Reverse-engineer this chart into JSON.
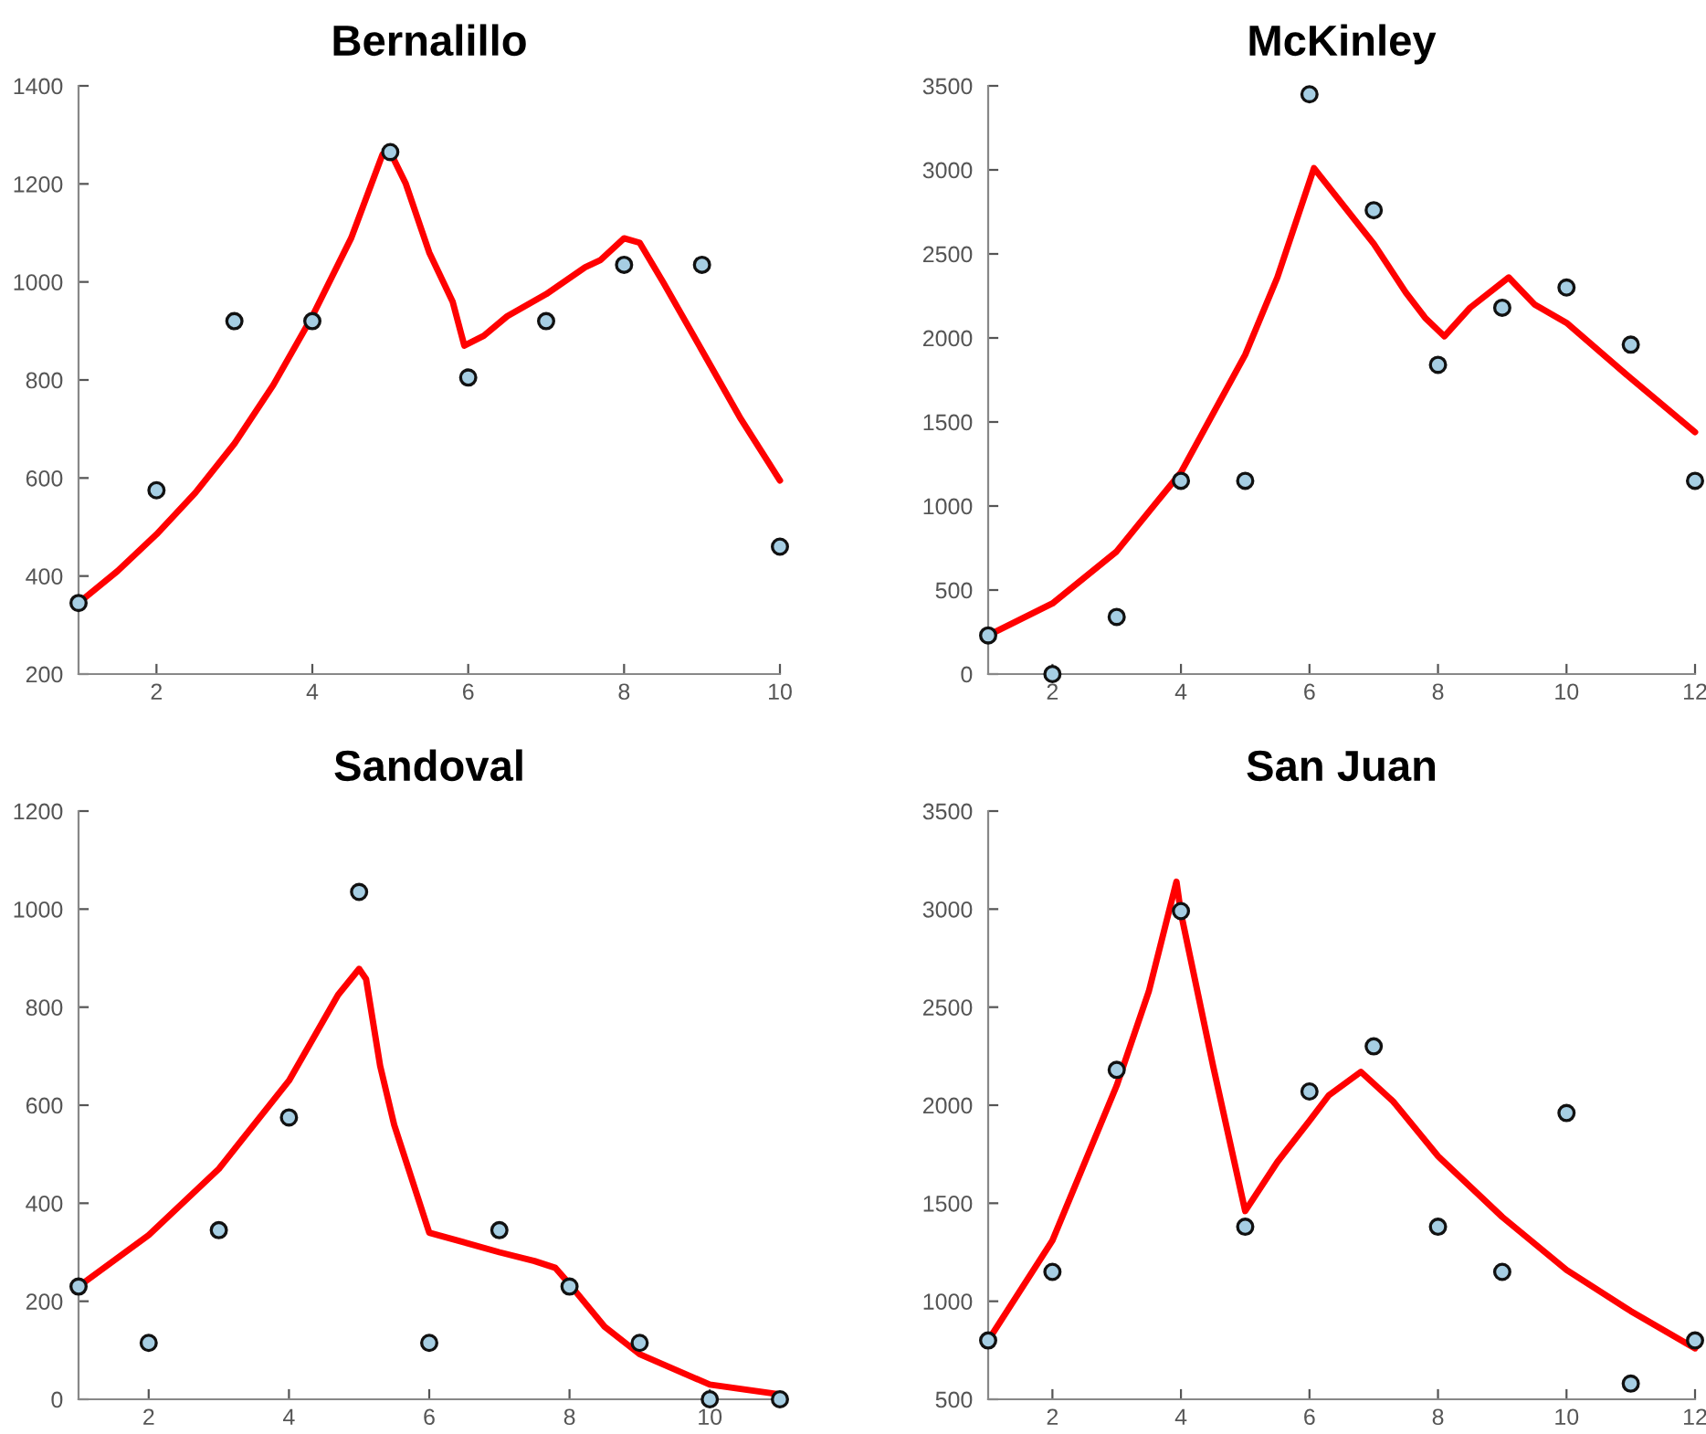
{
  "chart_data": [
    {
      "type": "scatter",
      "title": "Bernalillo",
      "xlim": [
        1,
        10
      ],
      "ylim": [
        200,
        1400
      ],
      "xticks": [
        2,
        4,
        6,
        8,
        10
      ],
      "yticks": [
        200,
        400,
        600,
        800,
        1000,
        1200,
        1400
      ],
      "grid": false,
      "series": [
        {
          "type": "line",
          "color": "#ff0000",
          "marker": "none",
          "line_style": "solid",
          "x": [
            1,
            1.5,
            2,
            2.5,
            3,
            3.5,
            4,
            4.5,
            4.9,
            5,
            5.2,
            5.5,
            5.8,
            5.95,
            6.2,
            6.5,
            7,
            7.5,
            7.7,
            8,
            8.2,
            8.5,
            9,
            9.5,
            10
          ],
          "values": [
            345,
            410,
            485,
            570,
            670,
            790,
            930,
            1090,
            1260,
            1265,
            1200,
            1060,
            960,
            870,
            890,
            930,
            975,
            1030,
            1045,
            1089,
            1080,
            1000,
            860,
            720,
            595
          ]
        },
        {
          "color": "#a6cee3",
          "marker": "circle",
          "x": [
            1,
            2,
            3,
            4,
            5,
            6,
            7,
            8,
            9,
            10
          ],
          "values": [
            345,
            575,
            920,
            920,
            1265,
            805,
            920,
            1035,
            1035,
            460
          ]
        }
      ]
    },
    {
      "type": "scatter",
      "title": "McKinley",
      "xlim": [
        1,
        12
      ],
      "ylim": [
        0,
        3500
      ],
      "xticks": [
        2,
        4,
        6,
        8,
        10,
        12
      ],
      "yticks": [
        0,
        500,
        1000,
        1500,
        2000,
        2500,
        3000,
        3500
      ],
      "grid": false,
      "series": [
        {
          "type": "line",
          "color": "#ff0000",
          "marker": "none",
          "line_style": "solid",
          "x": [
            1,
            2,
            3,
            4,
            5,
            5.5,
            6,
            6.07,
            7,
            7.5,
            7.8,
            8.1,
            8.5,
            9.1,
            9.5,
            10,
            11,
            12
          ],
          "values": [
            230,
            420,
            730,
            1200,
            1900,
            2360,
            2930,
            3010,
            2560,
            2270,
            2120,
            2010,
            2180,
            2360,
            2200,
            2090,
            1760,
            1440
          ]
        },
        {
          "color": "#a6cee3",
          "marker": "circle",
          "x": [
            1,
            2,
            3,
            4,
            5,
            6,
            7,
            8,
            9,
            10,
            11,
            12
          ],
          "values": [
            230,
            0,
            340,
            1150,
            1150,
            3450,
            2760,
            1840,
            2180,
            2300,
            1960,
            1150
          ]
        }
      ]
    },
    {
      "type": "scatter",
      "title": "Sandoval",
      "xlim": [
        1,
        11
      ],
      "ylim": [
        0,
        1200
      ],
      "xticks": [
        2,
        4,
        6,
        8,
        10
      ],
      "yticks": [
        0,
        200,
        400,
        600,
        800,
        1000,
        1200
      ],
      "grid": false,
      "series": [
        {
          "type": "line",
          "color": "#ff0000",
          "marker": "none",
          "line_style": "solid",
          "x": [
            1,
            2,
            3,
            4,
            4.7,
            5,
            5.1,
            5.3,
            5.5,
            6,
            7,
            7.5,
            7.8,
            8,
            8.5,
            9,
            10,
            11
          ],
          "values": [
            230,
            335,
            470,
            650,
            825,
            878,
            857,
            680,
            560,
            340,
            300,
            282,
            268,
            235,
            148,
            92,
            30,
            10
          ]
        },
        {
          "color": "#a6cee3",
          "marker": "circle",
          "x": [
            1,
            2,
            3,
            4,
            5,
            6,
            7,
            8,
            9,
            10,
            11
          ],
          "values": [
            230,
            115,
            345,
            575,
            1035,
            115,
            345,
            230,
            115,
            0,
            0
          ]
        }
      ]
    },
    {
      "type": "scatter",
      "title": "San Juan",
      "xlim": [
        1,
        12
      ],
      "ylim": [
        500,
        3500
      ],
      "xticks": [
        2,
        4,
        6,
        8,
        10,
        12
      ],
      "yticks": [
        500,
        1000,
        1500,
        2000,
        2500,
        3000,
        3500
      ],
      "grid": false,
      "series": [
        {
          "type": "line",
          "color": "#ff0000",
          "marker": "none",
          "line_style": "solid",
          "x": [
            1,
            2,
            3,
            3.5,
            3.93,
            4,
            4.5,
            5,
            5.5,
            6,
            6.3,
            6.8,
            7.3,
            8,
            9,
            10,
            11,
            12
          ],
          "values": [
            800,
            1310,
            2100,
            2580,
            3140,
            2980,
            2200,
            1460,
            1710,
            1920,
            2050,
            2170,
            2020,
            1740,
            1430,
            1160,
            950,
            760
          ]
        },
        {
          "color": "#a6cee3",
          "marker": "circle",
          "x": [
            1,
            2,
            3,
            4,
            5,
            6,
            7,
            8,
            9,
            10,
            11,
            12
          ],
          "values": [
            800,
            1150,
            2180,
            2990,
            1380,
            2070,
            2300,
            1380,
            1150,
            1960,
            580,
            800
          ]
        }
      ]
    }
  ]
}
